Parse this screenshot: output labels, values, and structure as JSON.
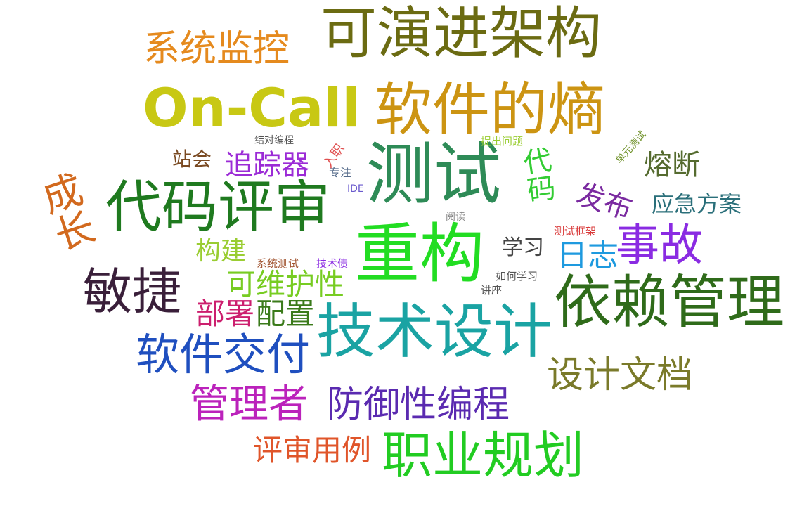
{
  "words": [
    {
      "id": "kyanjinjiagou",
      "text": "可演进架构",
      "color": "#6b6b12"
    },
    {
      "id": "xitongjiankong",
      "text": "系统监控",
      "color": "#e58a1e"
    },
    {
      "id": "oncall",
      "text": "On-Call",
      "color": "#c8c814"
    },
    {
      "id": "ruanjiandeshang",
      "text": "软件的熵",
      "color": "#cc9412"
    },
    {
      "id": "jieduibiancheng",
      "text": "结对编程",
      "color": "#555555"
    },
    {
      "id": "zhanhui",
      "text": "站会",
      "color": "#7a4a22"
    },
    {
      "id": "zhuizongqi",
      "text": "追踪器",
      "color": "#9b2bd6"
    },
    {
      "id": "ruzhi",
      "text": "入职",
      "color": "#e05050"
    },
    {
      "id": "zhuanzhu",
      "text": "专注",
      "color": "#556b8a"
    },
    {
      "id": "ide",
      "text": "IDE",
      "color": "#6a5acd"
    },
    {
      "id": "ceshi",
      "text": "测试",
      "color": "#2e8b57"
    },
    {
      "id": "tichuwenti",
      "text": "提出问题",
      "color": "#9acd32"
    },
    {
      "id": "daima",
      "text": "代码",
      "color": "#33cc33"
    },
    {
      "id": "danyuanceshi",
      "text": "单元测试",
      "color": "#6b8e23"
    },
    {
      "id": "rongduan",
      "text": "熔断",
      "color": "#556b2f"
    },
    {
      "id": "chengzhang",
      "text": "成长",
      "color": "#d2691e"
    },
    {
      "id": "daimapingshen",
      "text": "代码评审",
      "color": "#1f7a1f"
    },
    {
      "id": "fabu",
      "text": "发布",
      "color": "#7a2aa0"
    },
    {
      "id": "yingjifangan",
      "text": "应急方案",
      "color": "#2a6f7a"
    },
    {
      "id": "yuedu",
      "text": "阅读",
      "color": "#888888"
    },
    {
      "id": "ceshikuangjia",
      "text": "测试框架",
      "color": "#d93a3a"
    },
    {
      "id": "goujian",
      "text": "构建",
      "color": "#9acd32"
    },
    {
      "id": "chonggou",
      "text": "重构",
      "color": "#22dd22"
    },
    {
      "id": "xuexi",
      "text": "学习",
      "color": "#444444"
    },
    {
      "id": "rizhi",
      "text": "日志",
      "color": "#1e9adf"
    },
    {
      "id": "shigu",
      "text": "事故",
      "color": "#8a2be2"
    },
    {
      "id": "xitongceshi",
      "text": "系统测试",
      "color": "#a0522d"
    },
    {
      "id": "jishuzhai",
      "text": "技术债",
      "color": "#8a2be2"
    },
    {
      "id": "minjie",
      "text": "敏捷",
      "color": "#3a1f3a"
    },
    {
      "id": "keweihuxing",
      "text": "可维护性",
      "color": "#77cc22"
    },
    {
      "id": "ruhexuexi",
      "text": "如何学习",
      "color": "#555555"
    },
    {
      "id": "jiangzuo",
      "text": "讲座",
      "color": "#555555"
    },
    {
      "id": "yilaiguanli",
      "text": "依赖管理",
      "color": "#2f6b1a"
    },
    {
      "id": "bushu",
      "text": "部署",
      "color": "#cc1f6e"
    },
    {
      "id": "peizhi",
      "text": "配置",
      "color": "#3a7a1a"
    },
    {
      "id": "jishusheji",
      "text": "技术设计",
      "color": "#1aa3a3"
    },
    {
      "id": "ruanjianjiaofu",
      "text": "软件交付",
      "color": "#1f4fbf"
    },
    {
      "id": "shejiwendang",
      "text": "设计文档",
      "color": "#7a7a2a"
    },
    {
      "id": "guanlizhe",
      "text": "管理者",
      "color": "#bb22bb"
    },
    {
      "id": "fangyuxingbiancheng",
      "text": "防御性编程",
      "color": "#5a2ab0"
    },
    {
      "id": "pingshenyongli",
      "text": "评审用例",
      "color": "#e0552a"
    },
    {
      "id": "zhiyeguihua",
      "text": "职业规划",
      "color": "#22cc22"
    }
  ]
}
